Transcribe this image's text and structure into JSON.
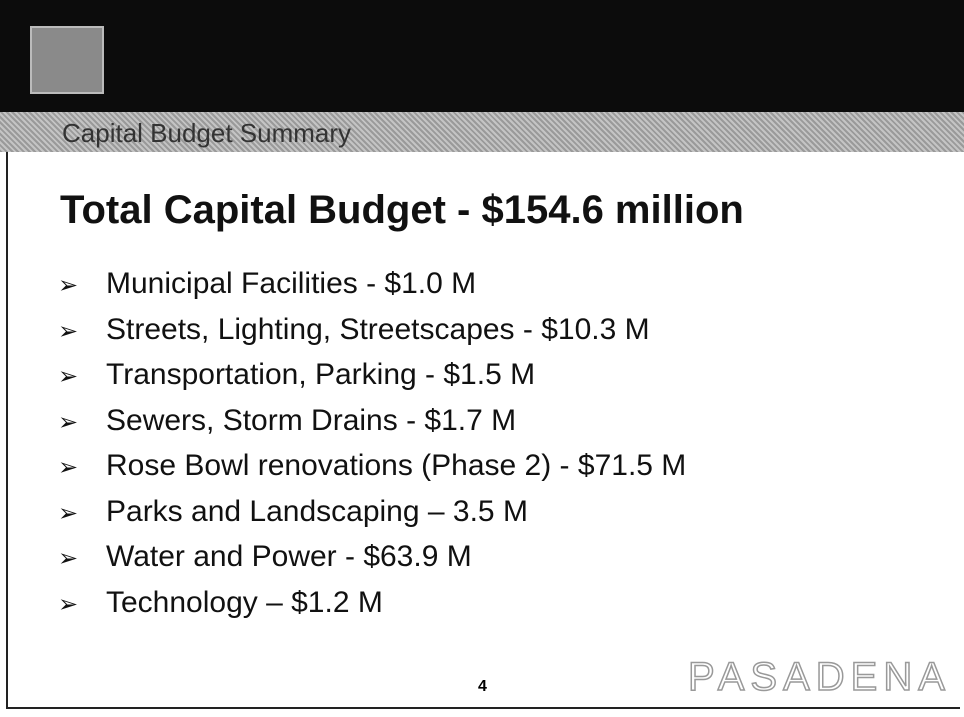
{
  "header": {
    "section": "Capital Budget Summary"
  },
  "title": "Total Capital Budget - $154.6 million",
  "items": [
    "Municipal Facilities - $1.0 M",
    "Streets, Lighting, Streetscapes - $10.3 M",
    "Transportation, Parking - $1.5 M",
    "Sewers, Storm Drains - $1.7 M",
    "Rose Bowl renovations (Phase 2) - $71.5 M",
    "Parks and Landscaping – 3.5 M",
    "Water and Power - $63.9 M",
    "Technology – $1.2 M"
  ],
  "footer": {
    "page": "4",
    "brand": "PASADENA"
  }
}
